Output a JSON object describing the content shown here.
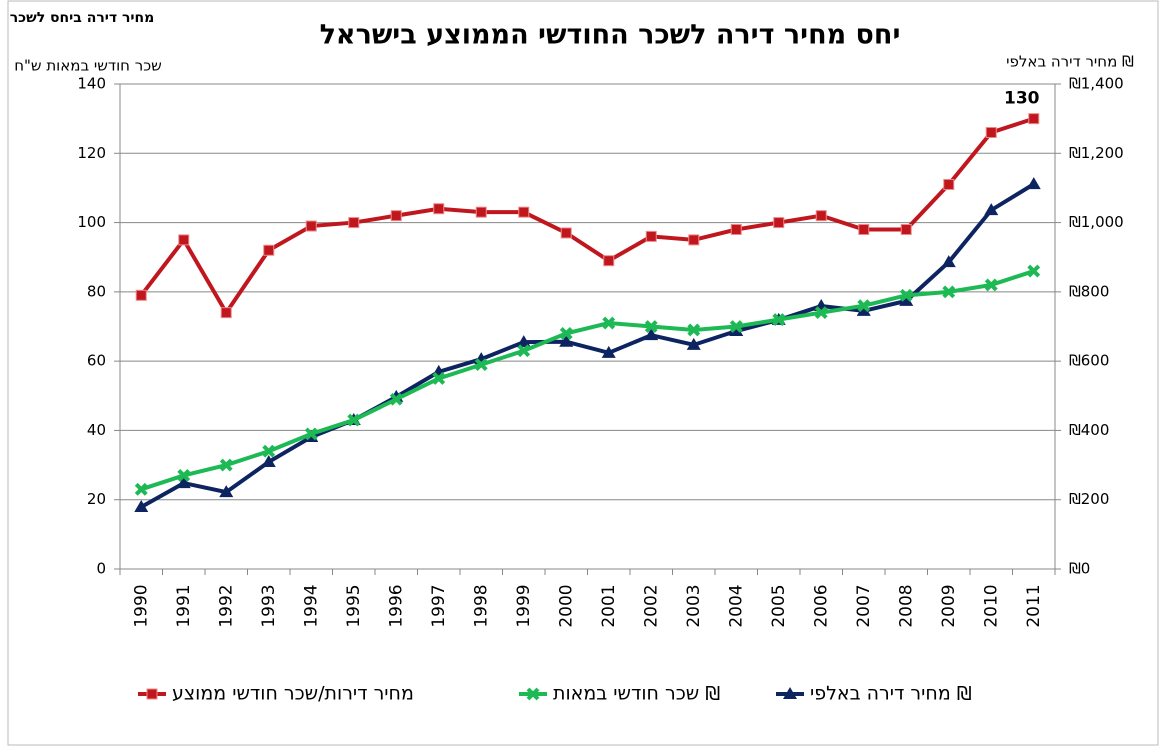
{
  "chart_data": {
    "type": "line",
    "title": "יחס מחיר דירה לשכר החודשי הממוצע בישראל",
    "ratio_axis_title": "מחיר דירה ביחס לשכר",
    "y_title": "שכר חודשי במאות ש\"ח",
    "y2_title": "מחיר דירה באלפי ₪",
    "categories": [
      "1990",
      "1991",
      "1992",
      "1993",
      "1994",
      "1995",
      "1996",
      "1997",
      "1998",
      "1999",
      "2000",
      "2001",
      "2002",
      "2003",
      "2004",
      "2005",
      "2006",
      "2007",
      "2008",
      "2009",
      "2010",
      "2011"
    ],
    "ylim": [
      0,
      140
    ],
    "yticks": [
      0,
      20,
      40,
      60,
      80,
      100,
      120,
      140
    ],
    "y2lim": [
      0,
      1400
    ],
    "y2ticks": [
      {
        "value": 0,
        "label": "₪0"
      },
      {
        "value": 200,
        "label": "₪200"
      },
      {
        "value": 400,
        "label": "₪400"
      },
      {
        "value": 600,
        "label": "₪600"
      },
      {
        "value": 800,
        "label": "₪800"
      },
      {
        "value": 1000,
        "label": "₪1,000"
      },
      {
        "value": 1200,
        "label": "₪1,200"
      },
      {
        "value": 1400,
        "label": "₪1,400"
      }
    ],
    "grid": true,
    "series": [
      {
        "name": "מחיר דירה באלפי ₪",
        "color": "#0d2461",
        "marker": "triangle",
        "axis": "y2",
        "values": [
          179,
          248,
          222,
          309,
          381,
          430,
          497,
          569,
          606,
          655,
          656,
          624,
          675,
          647,
          687,
          719,
          759,
          745,
          774,
          886,
          1036,
          1111
        ]
      },
      {
        "name": "שכר חודשי במאות ₪",
        "color": "#1db954",
        "marker": "x",
        "values": [
          23,
          27,
          30,
          34,
          39,
          43,
          49,
          55,
          59,
          63,
          68,
          71,
          70,
          69,
          70,
          72,
          74,
          76,
          79,
          80,
          82,
          86
        ]
      },
      {
        "name": "מחיר דירות/שכר חודשי ממוצע",
        "color": "#c0171e",
        "marker": "square",
        "values": [
          79,
          95,
          74,
          92,
          99,
          100,
          102,
          104,
          103,
          103,
          97,
          89,
          96,
          95,
          98,
          100,
          102,
          98,
          98,
          111,
          126,
          130
        ],
        "value_labels": [
          null,
          null,
          null,
          null,
          null,
          null,
          null,
          null,
          null,
          null,
          null,
          null,
          null,
          null,
          null,
          null,
          null,
          null,
          null,
          null,
          null,
          "130"
        ]
      }
    ]
  }
}
